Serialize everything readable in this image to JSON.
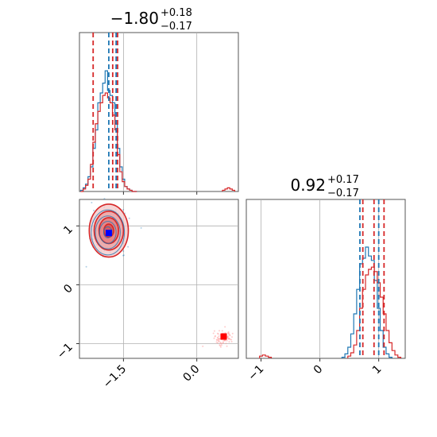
{
  "chart_data": [
    {
      "type": "histogram",
      "panel": "top-left",
      "title": {
        "value": "−1.80",
        "plus": "+0.18",
        "minus": "−0.17"
      },
      "xlim": [
        -2.4,
        0.85
      ],
      "xticks": [
        -1.5,
        0.0
      ],
      "quantiles_red": [
        -2.12,
        -1.72,
        -1.62
      ],
      "quantiles_blue": [
        -1.8,
        -1.65
      ],
      "series": [
        {
          "name": "",
          "color": "#1f77b4",
          "x": [
            -2.35,
            -2.3,
            -2.25,
            -2.2,
            -2.15,
            -2.1,
            -2.05,
            -2.0,
            -1.95,
            -1.9,
            -1.85,
            -1.8,
            -1.75,
            -1.7,
            -1.65,
            -1.6,
            -1.55,
            -1.5,
            -1.45,
            -1.4,
            -1.35,
            -1.3,
            -1.25
          ],
          "values": [
            0.01,
            0.03,
            0.06,
            0.12,
            0.2,
            0.35,
            0.5,
            0.72,
            0.8,
            0.88,
            0.98,
            0.82,
            0.78,
            0.72,
            0.55,
            0.35,
            0.2,
            0.1,
            0.04,
            0.02,
            0.01,
            0.0,
            0.0
          ]
        },
        {
          "name": "",
          "color": "#d62728",
          "x": [
            -2.35,
            -2.3,
            -2.25,
            -2.2,
            -2.15,
            -2.1,
            -2.05,
            -2.0,
            -1.95,
            -1.9,
            -1.85,
            -1.8,
            -1.75,
            -1.7,
            -1.65,
            -1.6,
            -1.55,
            -1.5,
            -1.45,
            -1.4,
            -1.35,
            -1.3,
            -1.25,
            0.55,
            0.6,
            0.65,
            0.7,
            0.75
          ],
          "values": [
            0.0,
            0.02,
            0.05,
            0.1,
            0.22,
            0.4,
            0.55,
            0.65,
            0.72,
            0.78,
            0.8,
            0.76,
            0.72,
            0.62,
            0.5,
            0.3,
            0.16,
            0.08,
            0.04,
            0.02,
            0.01,
            0.0,
            0.0,
            0.01,
            0.02,
            0.03,
            0.02,
            0.01
          ]
        }
      ]
    },
    {
      "type": "scatter",
      "panel": "bottom-left",
      "xlim": [
        -2.4,
        0.85
      ],
      "ylim": [
        -1.25,
        1.45
      ],
      "xticks": [
        -1.5,
        0.0
      ],
      "yticks": [
        -1,
        0,
        1
      ],
      "xtick_labels": [
        "−1.5",
        "0.0"
      ],
      "ytick_labels": [
        "−1",
        "0",
        "1"
      ],
      "contours_red": [
        {
          "cx": -1.8,
          "cy": 0.92,
          "rx": 0.4,
          "ry": 0.45
        },
        {
          "cx": -1.8,
          "cy": 0.92,
          "rx": 0.3,
          "ry": 0.33
        },
        {
          "cx": -1.8,
          "cy": 0.92,
          "rx": 0.2,
          "ry": 0.22
        },
        {
          "cx": -1.8,
          "cy": 0.92,
          "rx": 0.1,
          "ry": 0.11
        }
      ],
      "points_blue_center": [
        -1.8,
        0.9
      ],
      "points_red_secondary": [
        0.55,
        -0.9
      ],
      "marker_blue": [
        -1.8,
        0.88
      ],
      "marker_red": [
        0.55,
        -0.88
      ]
    },
    {
      "type": "histogram",
      "panel": "bottom-right",
      "title": {
        "value": "0.92",
        "plus": "+0.17",
        "minus": "−0.17"
      },
      "xlim": [
        -1.25,
        1.45
      ],
      "xticks": [
        -1,
        0,
        1
      ],
      "xtick_labels": [
        "−1",
        "0",
        "1"
      ],
      "quantiles_red": [
        0.73,
        0.92,
        1.09
      ],
      "quantiles_blue": [
        0.68,
        1.0
      ],
      "series": [
        {
          "name": "",
          "color": "#1f77b4",
          "x": [
            0.4,
            0.45,
            0.5,
            0.55,
            0.6,
            0.65,
            0.7,
            0.75,
            0.8,
            0.85,
            0.9,
            0.95,
            1.0,
            1.05,
            1.1,
            1.15,
            1.2
          ],
          "values": [
            0.01,
            0.04,
            0.1,
            0.22,
            0.4,
            0.62,
            0.85,
            0.9,
            1.0,
            0.92,
            0.88,
            0.7,
            0.45,
            0.25,
            0.1,
            0.04,
            0.01
          ]
        },
        {
          "name": "",
          "color": "#d62728",
          "x": [
            -1.0,
            -0.95,
            -0.9,
            -0.85,
            0.5,
            0.55,
            0.6,
            0.65,
            0.7,
            0.75,
            0.8,
            0.85,
            0.9,
            0.95,
            1.0,
            1.05,
            1.1,
            1.15,
            1.2,
            1.25,
            1.3,
            1.35
          ],
          "values": [
            0.02,
            0.03,
            0.02,
            0.01,
            0.02,
            0.05,
            0.12,
            0.25,
            0.45,
            0.62,
            0.75,
            0.8,
            0.82,
            0.78,
            0.68,
            0.55,
            0.4,
            0.25,
            0.14,
            0.07,
            0.03,
            0.01
          ]
        }
      ]
    }
  ]
}
